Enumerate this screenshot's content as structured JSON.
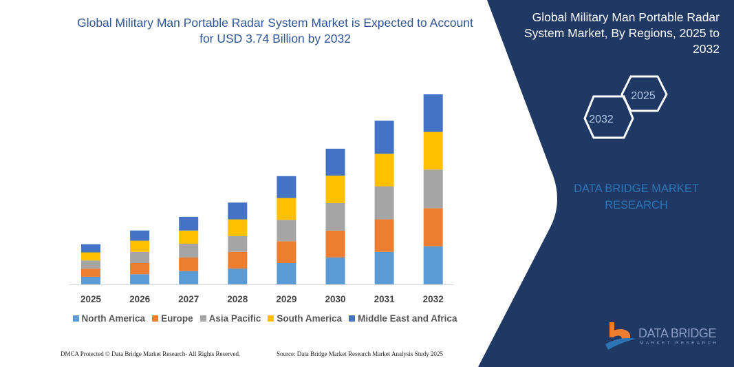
{
  "header": {
    "left_title": "Global Military Man Portable Radar System Market is Expected to Account for USD 3.74 Billion by 2032",
    "right_title": "Global Military Man Portable Radar System Market, By Regions, 2025 to 2032",
    "hex_start": "2025",
    "hex_end": "2032",
    "brand": "DATA BRIDGE MARKET RESEARCH"
  },
  "logo": {
    "name": "DATA BRIDGE",
    "sub": "MARKET RESEARCH"
  },
  "footer": {
    "left": "DMCA Protected © Data Bridge Market Research- All Rights Reserved.",
    "right": "Source: Data Bridge Market Research Market Analysis Study 2025"
  },
  "colors": {
    "panel": "#1f3864",
    "title": "#2f5597",
    "brand": "#2e75b6"
  },
  "chart_data": {
    "type": "bar",
    "stacked": true,
    "categories": [
      "2025",
      "2026",
      "2027",
      "2028",
      "2029",
      "2030",
      "2031",
      "2032"
    ],
    "ylim": [
      0,
      3.74
    ],
    "grid": false,
    "legend": "bottom",
    "series": [
      {
        "name": "North America",
        "color": "#5b9bd5",
        "values": [
          0.15,
          0.2,
          0.26,
          0.31,
          0.42,
          0.53,
          0.64,
          0.75
        ]
      },
      {
        "name": "Europe",
        "color": "#ed7d31",
        "values": [
          0.16,
          0.22,
          0.27,
          0.33,
          0.43,
          0.53,
          0.64,
          0.75
        ]
      },
      {
        "name": "Asia Pacific",
        "color": "#a5a5a5",
        "values": [
          0.16,
          0.22,
          0.27,
          0.31,
          0.42,
          0.54,
          0.65,
          0.76
        ]
      },
      {
        "name": "South America",
        "color": "#ffc000",
        "values": [
          0.16,
          0.22,
          0.26,
          0.33,
          0.43,
          0.54,
          0.64,
          0.74
        ]
      },
      {
        "name": "Middle East and Africa",
        "color": "#4472c4",
        "values": [
          0.16,
          0.2,
          0.27,
          0.33,
          0.43,
          0.53,
          0.65,
          0.74
        ]
      }
    ]
  }
}
